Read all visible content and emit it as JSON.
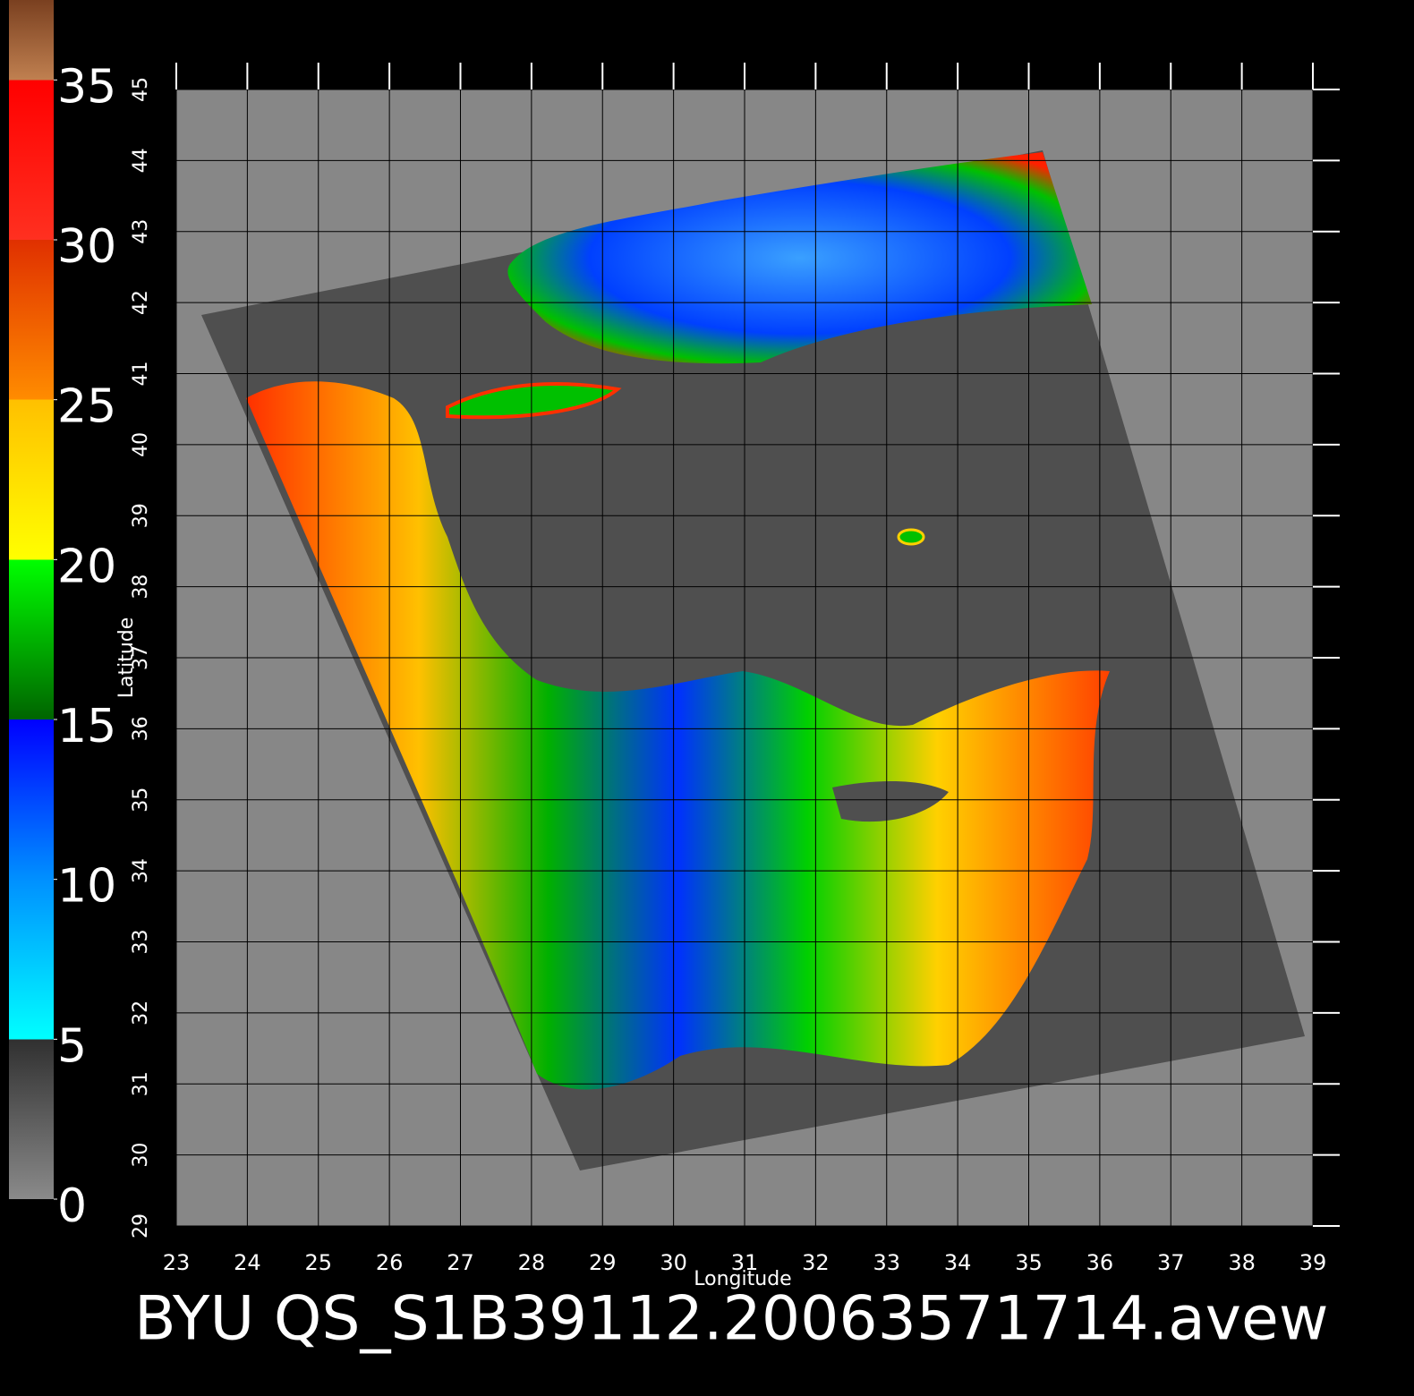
{
  "chart_data": {
    "type": "map",
    "title": "BYU QS_S1B39112.20063571714.avew",
    "xlabel": "Longitude",
    "ylabel": "Latitude",
    "xlim": [
      23,
      39
    ],
    "ylim": [
      29,
      45
    ],
    "xticks": [
      23,
      24,
      25,
      26,
      27,
      28,
      29,
      30,
      31,
      32,
      33,
      34,
      35,
      36,
      37,
      38,
      39
    ],
    "yticks": [
      29,
      30,
      31,
      32,
      33,
      34,
      35,
      36,
      37,
      38,
      39,
      40,
      41,
      42,
      43,
      44,
      45
    ],
    "grid": true,
    "colorbar": {
      "lim": [
        0,
        37.5
      ],
      "ticks": [
        0,
        5,
        10,
        15,
        20,
        25,
        30,
        35
      ],
      "stops": [
        {
          "value": 0,
          "color": "#8a8a8a"
        },
        {
          "value": 5,
          "color": "#303030"
        },
        {
          "value": 5,
          "color": "#00ffff"
        },
        {
          "value": 10,
          "color": "#0090ff"
        },
        {
          "value": 15,
          "color": "#0000ff"
        },
        {
          "value": 15,
          "color": "#006400"
        },
        {
          "value": 20,
          "color": "#00ff00"
        },
        {
          "value": 20,
          "color": "#ffff00"
        },
        {
          "value": 25,
          "color": "#ffc000"
        },
        {
          "value": 25,
          "color": "#ff8c00"
        },
        {
          "value": 30,
          "color": "#e03000"
        },
        {
          "value": 30,
          "color": "#ff3020"
        },
        {
          "value": 35,
          "color": "#ff0000"
        },
        {
          "value": 35,
          "color": "#c08050"
        },
        {
          "value": 37.5,
          "color": "#7a4020"
        }
      ]
    }
  }
}
